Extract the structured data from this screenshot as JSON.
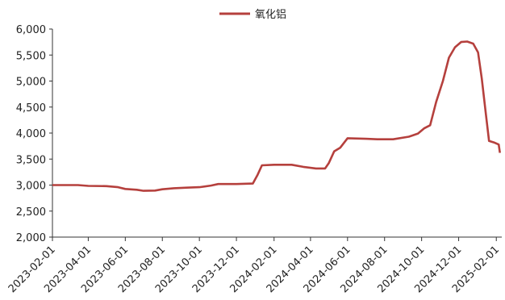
{
  "chart_data": {
    "type": "line",
    "title": "",
    "xlabel": "",
    "ylabel": "",
    "legend": {
      "position": "top-center",
      "entries": [
        "氧化铝"
      ]
    },
    "grid": false,
    "ylim": [
      2000,
      6000
    ],
    "yticks": [
      "2,000",
      "2,500",
      "3,000",
      "3,500",
      "4,000",
      "4,500",
      "5,000",
      "5,500",
      "6,000"
    ],
    "xticks": [
      "2023-02-01",
      "2023-04-01",
      "2023-06-01",
      "2023-08-01",
      "2023-10-01",
      "2023-12-01",
      "2024-02-01",
      "2024-04-01",
      "2024-06-01",
      "2024-08-01",
      "2024-10-01",
      "2024-12-01",
      "2025-02-01"
    ],
    "xlim": [
      "2023-02-01",
      "2025-02-10"
    ],
    "series": [
      {
        "name": "氧化铝",
        "color": "#b5403d",
        "points": [
          [
            "2023-02-01",
            3000
          ],
          [
            "2023-03-15",
            3000
          ],
          [
            "2023-04-01",
            2985
          ],
          [
            "2023-05-01",
            2980
          ],
          [
            "2023-05-20",
            2960
          ],
          [
            "2023-06-01",
            2925
          ],
          [
            "2023-06-20",
            2910
          ],
          [
            "2023-07-01",
            2890
          ],
          [
            "2023-07-20",
            2895
          ],
          [
            "2023-08-01",
            2920
          ],
          [
            "2023-08-20",
            2940
          ],
          [
            "2023-09-10",
            2950
          ],
          [
            "2023-10-01",
            2960
          ],
          [
            "2023-10-20",
            2990
          ],
          [
            "2023-11-01",
            3020
          ],
          [
            "2023-12-01",
            3020
          ],
          [
            "2023-12-28",
            3030
          ],
          [
            "2024-01-05",
            3200
          ],
          [
            "2024-01-12",
            3380
          ],
          [
            "2024-02-01",
            3390
          ],
          [
            "2024-03-01",
            3390
          ],
          [
            "2024-03-20",
            3350
          ],
          [
            "2024-04-10",
            3320
          ],
          [
            "2024-04-25",
            3320
          ],
          [
            "2024-05-01",
            3420
          ],
          [
            "2024-05-10",
            3650
          ],
          [
            "2024-05-20",
            3720
          ],
          [
            "2024-06-01",
            3900
          ],
          [
            "2024-07-01",
            3890
          ],
          [
            "2024-07-20",
            3880
          ],
          [
            "2024-08-15",
            3880
          ],
          [
            "2024-09-10",
            3930
          ],
          [
            "2024-09-25",
            3990
          ],
          [
            "2024-10-05",
            4090
          ],
          [
            "2024-10-15",
            4150
          ],
          [
            "2024-10-25",
            4600
          ],
          [
            "2024-11-05",
            5000
          ],
          [
            "2024-11-15",
            5450
          ],
          [
            "2024-11-25",
            5650
          ],
          [
            "2024-12-05",
            5750
          ],
          [
            "2024-12-15",
            5760
          ],
          [
            "2024-12-25",
            5720
          ],
          [
            "2025-01-02",
            5550
          ],
          [
            "2025-01-08",
            5050
          ],
          [
            "2025-01-15",
            4350
          ],
          [
            "2025-01-20",
            3850
          ],
          [
            "2025-01-28",
            3820
          ],
          [
            "2025-02-05",
            3780
          ],
          [
            "2025-02-07",
            3620
          ]
        ]
      }
    ]
  }
}
